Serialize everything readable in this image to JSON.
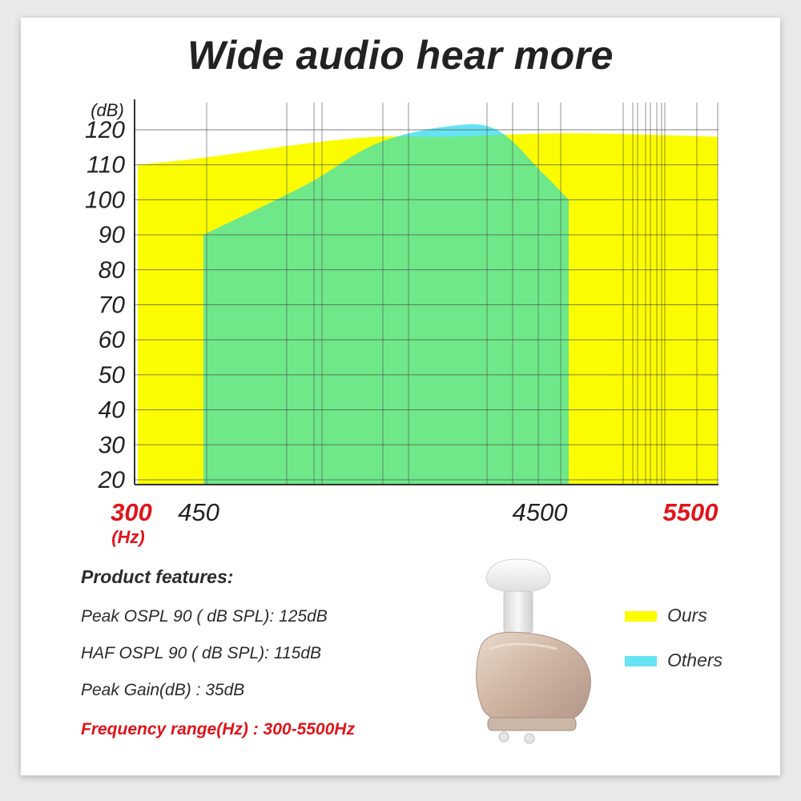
{
  "title": "Wide audio  hear more",
  "chart_data": {
    "type": "area",
    "ylabel": "(dB)",
    "xlabel": "(Hz)",
    "yticks": [
      120,
      110,
      100,
      90,
      80,
      70,
      60,
      50,
      40,
      30,
      20
    ],
    "ylim": [
      20,
      125
    ],
    "xticks": [
      {
        "label": "300",
        "value": 300,
        "highlight": true
      },
      {
        "label": "450",
        "value": 450,
        "highlight": false
      },
      {
        "label": "4500",
        "value": 4500,
        "highlight": false
      },
      {
        "label": "5500",
        "value": 5500,
        "highlight": true
      }
    ],
    "series": [
      {
        "name": "Ours",
        "color": "#fcfc00",
        "x": [
          300,
          450,
          1000,
          2000,
          3000,
          4500,
          5500
        ],
        "y": [
          110,
          112,
          116,
          118,
          118,
          119,
          118
        ]
      },
      {
        "name": "Others",
        "color": "#66e4f4",
        "x": [
          450,
          1000,
          2000,
          3000,
          3800,
          4200,
          4500
        ],
        "y": [
          90,
          104,
          116,
          121,
          120,
          108,
          100
        ]
      }
    ],
    "overlap_color": "#6ee888",
    "grid": true,
    "legend": "bottom-right"
  },
  "features": {
    "title": "Product features:",
    "items": [
      "Peak OSPL 90 ( dB SPL): 125dB",
      "HAF  OSPL 90 ( dB SPL): 115dB",
      "Peak  Gain(dB) : 35dB"
    ],
    "highlight": "Frequency range(Hz) : 300-5500Hz"
  },
  "legend": {
    "items": [
      {
        "label": "Ours",
        "color": "#fcfc00"
      },
      {
        "label": "Others",
        "color": "#66e4f4"
      }
    ]
  }
}
